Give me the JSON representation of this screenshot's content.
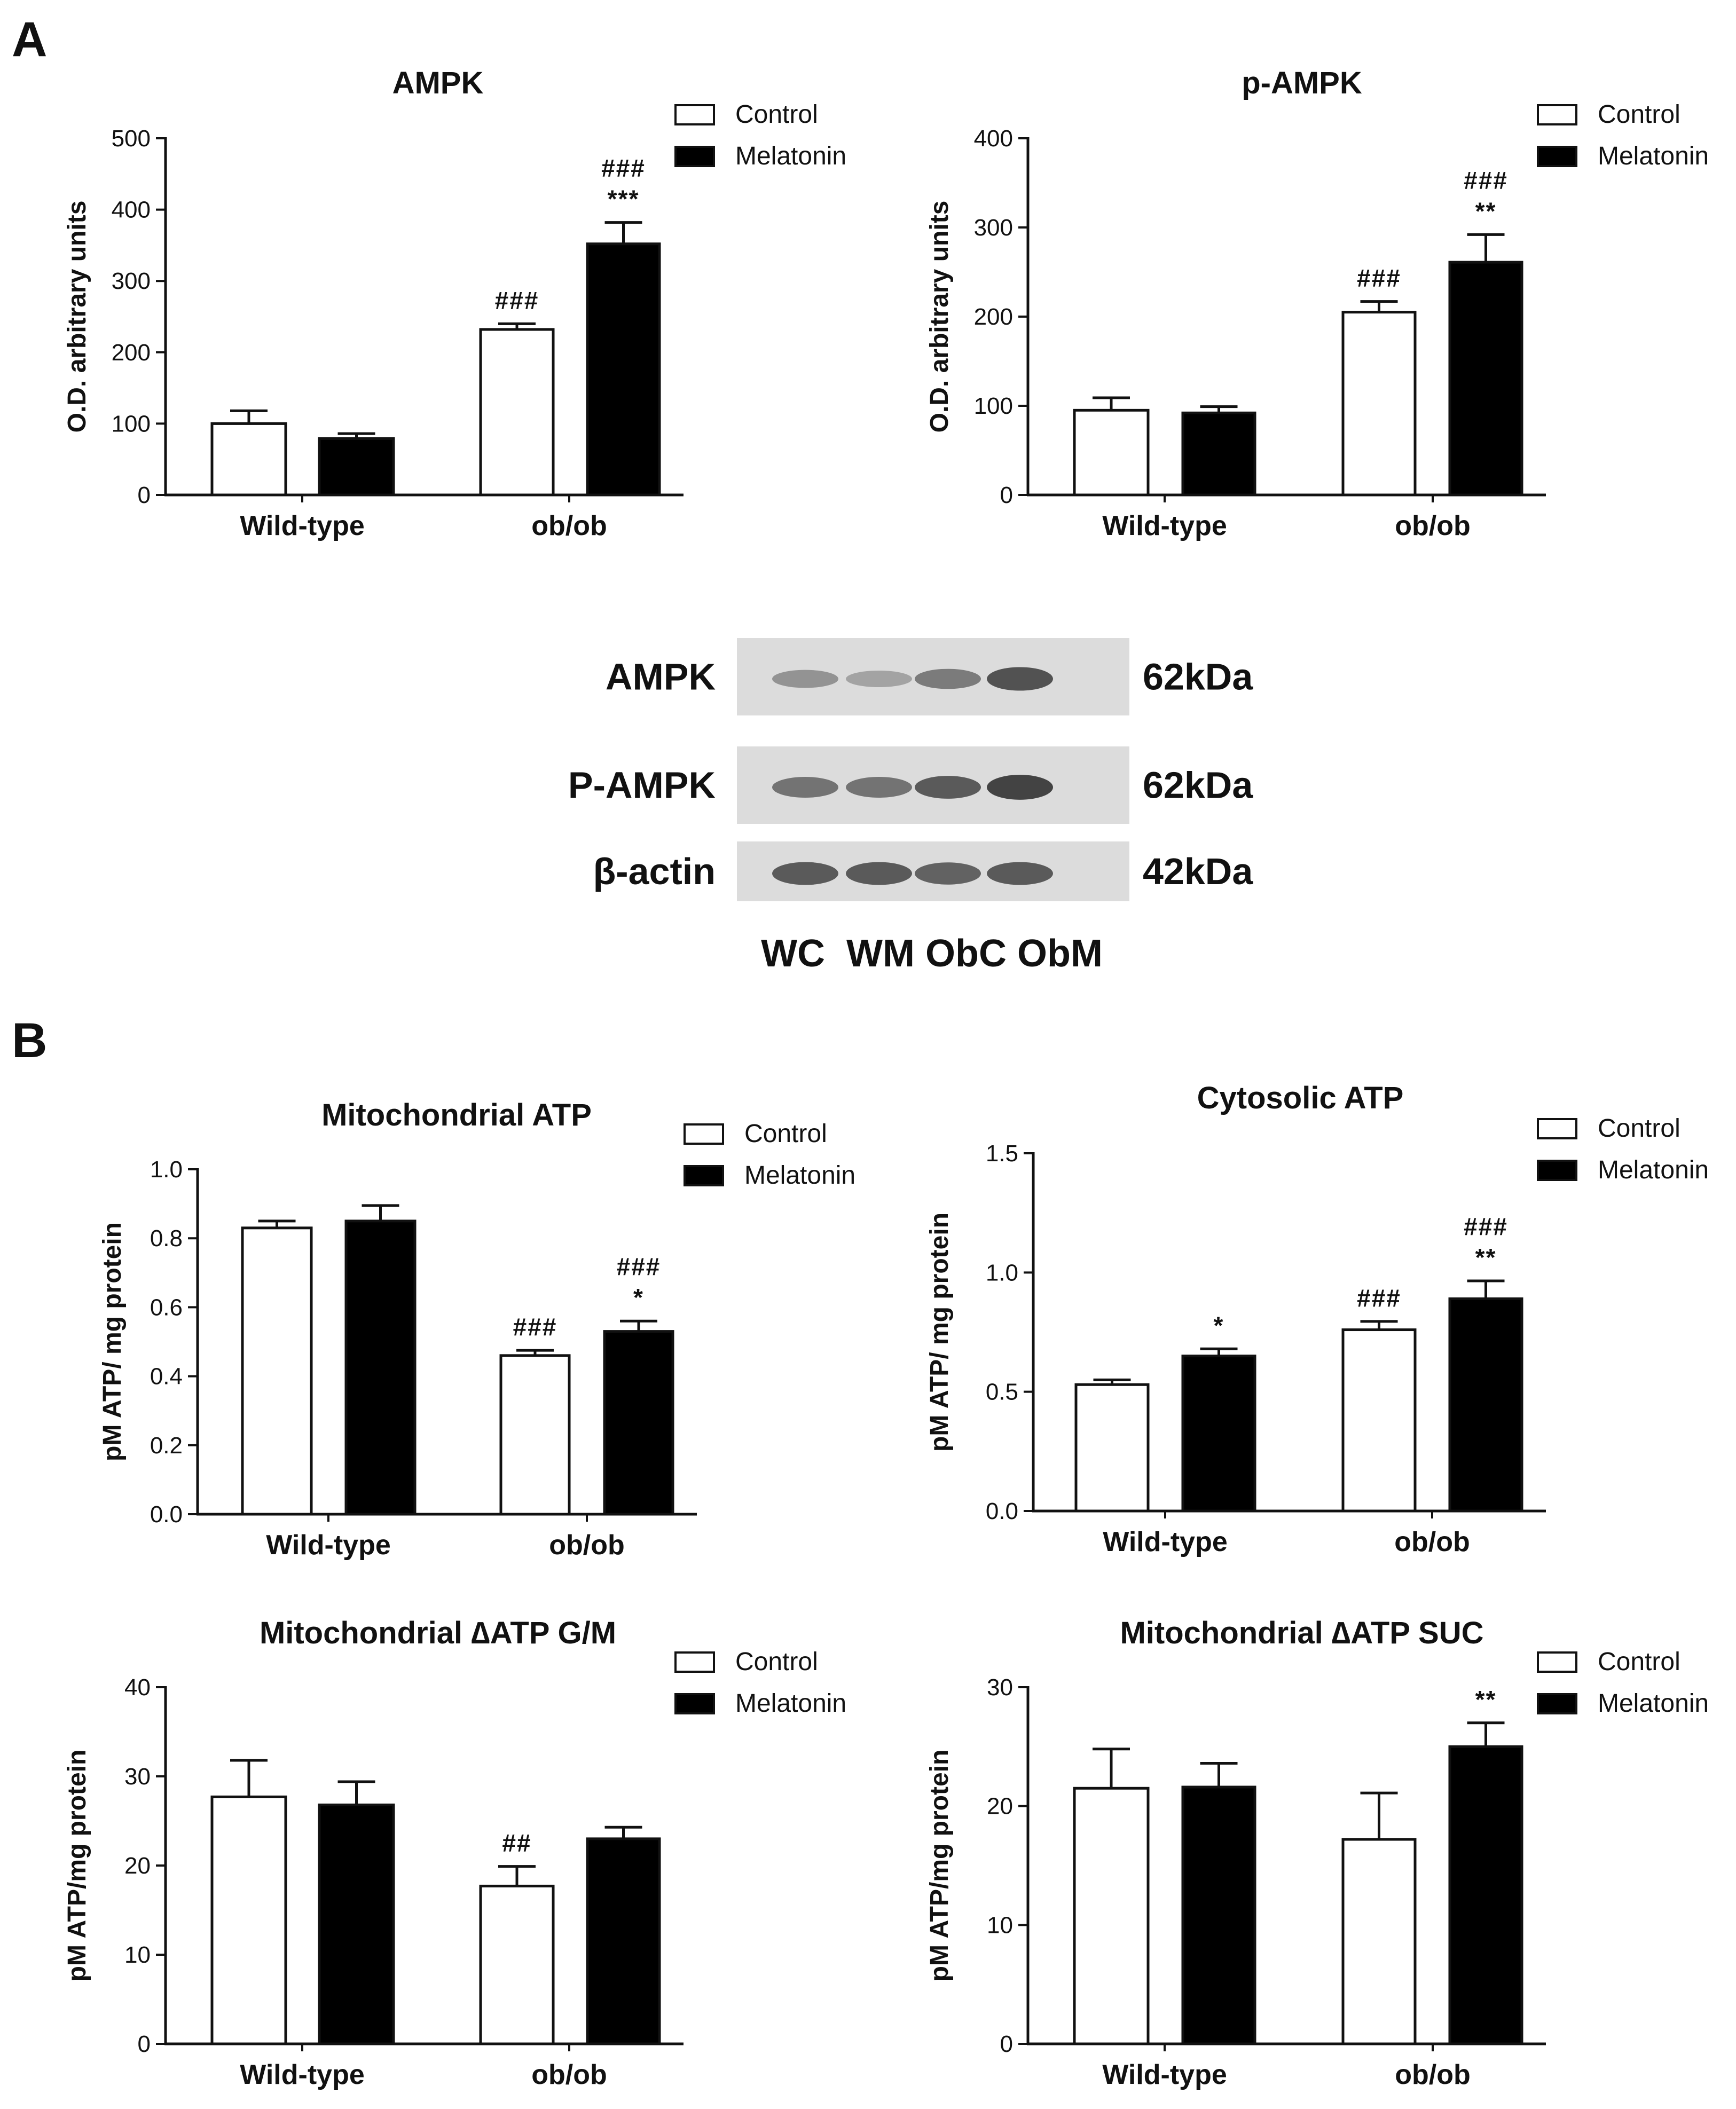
{
  "panels": {
    "a": "A",
    "b": "B"
  },
  "colors": {
    "control_fill": "#ffffff",
    "melatonin_fill": "#000000",
    "axis": "#111111",
    "blot_bg": "#dcdcdc",
    "band": "#3a3a3a"
  },
  "chart_data": [
    {
      "type": "bar",
      "title": "AMPK",
      "ylabel": "O.D. arbitrary units",
      "categories": [
        "Wild-type",
        "ob/ob"
      ],
      "ylim": [
        0,
        500
      ],
      "yticks": [
        "0",
        "100",
        "200",
        "300",
        "400",
        "500"
      ],
      "legend": {
        "position": "top-right",
        "entries": [
          "Control",
          "Melatonin"
        ]
      },
      "series": [
        {
          "name": "Control",
          "values": [
            100,
            232
          ],
          "errors": [
            18,
            8
          ],
          "significance": [
            "",
            "###"
          ]
        },
        {
          "name": "Melatonin",
          "values": [
            79,
            352
          ],
          "errors": [
            7,
            30
          ],
          "significance": [
            "",
            "###\n***"
          ]
        }
      ]
    },
    {
      "type": "bar",
      "title": "p-AMPK",
      "ylabel": "O.D. arbitrary units",
      "categories": [
        "Wild-type",
        "ob/ob"
      ],
      "ylim": [
        0,
        400
      ],
      "yticks": [
        "0",
        "100",
        "200",
        "300",
        "400"
      ],
      "legend": {
        "position": "top-right",
        "entries": [
          "Control",
          "Melatonin"
        ]
      },
      "series": [
        {
          "name": "Control",
          "values": [
            95,
            205
          ],
          "errors": [
            14,
            12
          ],
          "significance": [
            "",
            "###"
          ]
        },
        {
          "name": "Melatonin",
          "values": [
            92,
            261
          ],
          "errors": [
            7,
            31
          ],
          "significance": [
            "",
            "###\n**"
          ]
        }
      ]
    },
    {
      "type": "bar",
      "title": "Mitochondrial  ATP",
      "ylabel": "pM ATP/ mg protein",
      "categories": [
        "Wild-type",
        "ob/ob"
      ],
      "ylim": [
        0,
        1.0
      ],
      "yticks": [
        "0.0",
        "0.2",
        "0.4",
        "0.6",
        "0.8",
        "1.0"
      ],
      "legend": {
        "position": "top-right",
        "entries": [
          "Control",
          "Melatonin"
        ]
      },
      "series": [
        {
          "name": "Control",
          "values": [
            0.83,
            0.46
          ],
          "errors": [
            0.02,
            0.015
          ],
          "significance": [
            "",
            "###"
          ]
        },
        {
          "name": "Melatonin",
          "values": [
            0.85,
            0.53
          ],
          "errors": [
            0.045,
            0.03
          ],
          "significance": [
            "",
            "###\n*"
          ]
        }
      ]
    },
    {
      "type": "bar",
      "title": "Cytosolic ATP",
      "ylabel": "pM ATP/ mg protein",
      "categories": [
        "Wild-type",
        "ob/ob"
      ],
      "ylim": [
        0,
        1.5
      ],
      "yticks": [
        "0.0",
        "0.5",
        "1.0",
        "1.5"
      ],
      "legend": {
        "position": "top-right",
        "entries": [
          "Control",
          "Melatonin"
        ]
      },
      "series": [
        {
          "name": "Control",
          "values": [
            0.53,
            0.76
          ],
          "errors": [
            0.02,
            0.035
          ],
          "significance": [
            "",
            "###"
          ]
        },
        {
          "name": "Melatonin",
          "values": [
            0.65,
            0.89
          ],
          "errors": [
            0.03,
            0.075
          ],
          "significance": [
            "*",
            "###\n**"
          ]
        }
      ]
    },
    {
      "type": "bar",
      "title": "Mitochondrial ∆ATP G/M",
      "ylabel": "pM ATP/mg protein",
      "categories": [
        "Wild-type",
        "ob/ob"
      ],
      "ylim": [
        0,
        40
      ],
      "yticks": [
        "0",
        "10",
        "20",
        "30",
        "40"
      ],
      "legend": {
        "position": "top-right",
        "entries": [
          "Control",
          "Melatonin"
        ]
      },
      "series": [
        {
          "name": "Control",
          "values": [
            27.7,
            17.7
          ],
          "errors": [
            4.1,
            2.2
          ],
          "significance": [
            "",
            "##"
          ]
        },
        {
          "name": "Melatonin",
          "values": [
            26.8,
            23.0
          ],
          "errors": [
            2.6,
            1.3
          ],
          "significance": [
            "",
            ""
          ]
        }
      ]
    },
    {
      "type": "bar",
      "title": "Mitochondrial ∆ATP SUC",
      "ylabel": "pM ATP/mg protein",
      "categories": [
        "Wild-type",
        "ob/ob"
      ],
      "ylim": [
        0,
        30
      ],
      "yticks": [
        "0",
        "10",
        "20",
        "30"
      ],
      "legend": {
        "position": "top-right",
        "entries": [
          "Control",
          "Melatonin"
        ]
      },
      "series": [
        {
          "name": "Control",
          "values": [
            21.5,
            17.2
          ],
          "errors": [
            3.3,
            3.9
          ],
          "significance": [
            "",
            ""
          ]
        },
        {
          "name": "Melatonin",
          "values": [
            21.6,
            25.0
          ],
          "errors": [
            2.0,
            2.0
          ],
          "significance": [
            "",
            "**"
          ]
        }
      ]
    }
  ],
  "western_blot": {
    "rows": [
      {
        "name": "AMPK",
        "size": "62kDa",
        "band_intensity": [
          0.45,
          0.35,
          0.6,
          0.85
        ]
      },
      {
        "name": "P-AMPK",
        "size": "62kDa",
        "band_intensity": [
          0.65,
          0.65,
          0.8,
          0.95
        ]
      },
      {
        "name": "β-actin",
        "size": "42kDa",
        "band_intensity": [
          0.8,
          0.8,
          0.75,
          0.8
        ]
      }
    ],
    "lanes": "WC  WM ObC ObM"
  }
}
